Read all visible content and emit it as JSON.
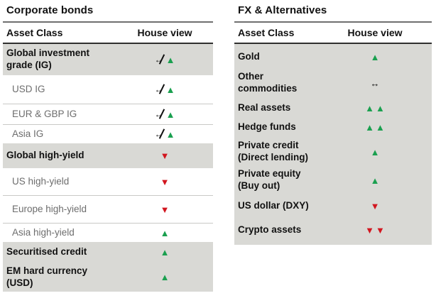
{
  "colors": {
    "shaded_row_bg": "#d9d9d5",
    "accent_green": "#1aa04f",
    "accent_red": "#d2161f",
    "text_black": "#111111",
    "text_gray": "#6d6d6d",
    "title_rule": "#6f6f6f",
    "header_rule": "#2f2f2f",
    "separator": "#c9c9c6"
  },
  "icons": {
    "up": {
      "glyph": "▲",
      "color": "#1aa04f",
      "name": "up-triangle-icon"
    },
    "down": {
      "glyph": "▼",
      "color": "#d2161f",
      "name": "down-triangle-icon"
    },
    "neutral": {
      "glyph": "↔",
      "color": "#111111",
      "name": "neutral-arrow-icon"
    },
    "change-from-neutral": {
      "glyph": "↔",
      "color": "#111111",
      "name": "changed-from-neutral-icon"
    }
  },
  "tables": [
    {
      "id": "corporate-bonds",
      "title": "Corporate bonds",
      "columns": [
        "Asset Class",
        "House view"
      ],
      "rows": [
        {
          "label": "Global investment\ngrade (IG)",
          "emphasis": true,
          "view": [
            "change-from-neutral",
            "up"
          ]
        },
        {
          "label": "USD IG",
          "emphasis": false,
          "view": [
            "change-from-neutral",
            "up"
          ]
        },
        {
          "label": "EUR & GBP IG",
          "emphasis": false,
          "view": [
            "change-from-neutral",
            "up"
          ]
        },
        {
          "label": "Asia IG",
          "emphasis": false,
          "view": [
            "change-from-neutral",
            "up"
          ]
        },
        {
          "label": "Global high-yield",
          "emphasis": true,
          "view": [
            "down"
          ]
        },
        {
          "label": "US high-yield",
          "emphasis": false,
          "view": [
            "down"
          ]
        },
        {
          "label": "Europe high-yield",
          "emphasis": false,
          "view": [
            "down"
          ]
        },
        {
          "label": "Asia high-yield",
          "emphasis": false,
          "view": [
            "up"
          ]
        },
        {
          "label": "Securitised credit",
          "emphasis": true,
          "view": [
            "up"
          ]
        },
        {
          "label": "EM hard currency\n(USD)",
          "emphasis": true,
          "view": [
            "up"
          ]
        }
      ]
    },
    {
      "id": "fx-alternatives",
      "title": "FX & Alternatives",
      "columns": [
        "Asset Class",
        "House view"
      ],
      "rows": [
        {
          "label": "Gold",
          "emphasis": true,
          "view": [
            "up"
          ]
        },
        {
          "label": "Other\ncommodities",
          "emphasis": true,
          "view": [
            "neutral"
          ]
        },
        {
          "label": "Real assets",
          "emphasis": true,
          "view": [
            "up",
            "up"
          ]
        },
        {
          "label": "Hedge funds",
          "emphasis": true,
          "view": [
            "up",
            "up"
          ]
        },
        {
          "label": "Private credit\n(Direct lending)",
          "emphasis": true,
          "view": [
            "up"
          ]
        },
        {
          "label": "Private equity\n(Buy out)",
          "emphasis": true,
          "view": [
            "up"
          ]
        },
        {
          "label": "US dollar (DXY)",
          "emphasis": true,
          "view": [
            "down"
          ]
        },
        {
          "label": "Crypto assets",
          "emphasis": true,
          "view": [
            "down",
            "down"
          ]
        }
      ]
    }
  ]
}
